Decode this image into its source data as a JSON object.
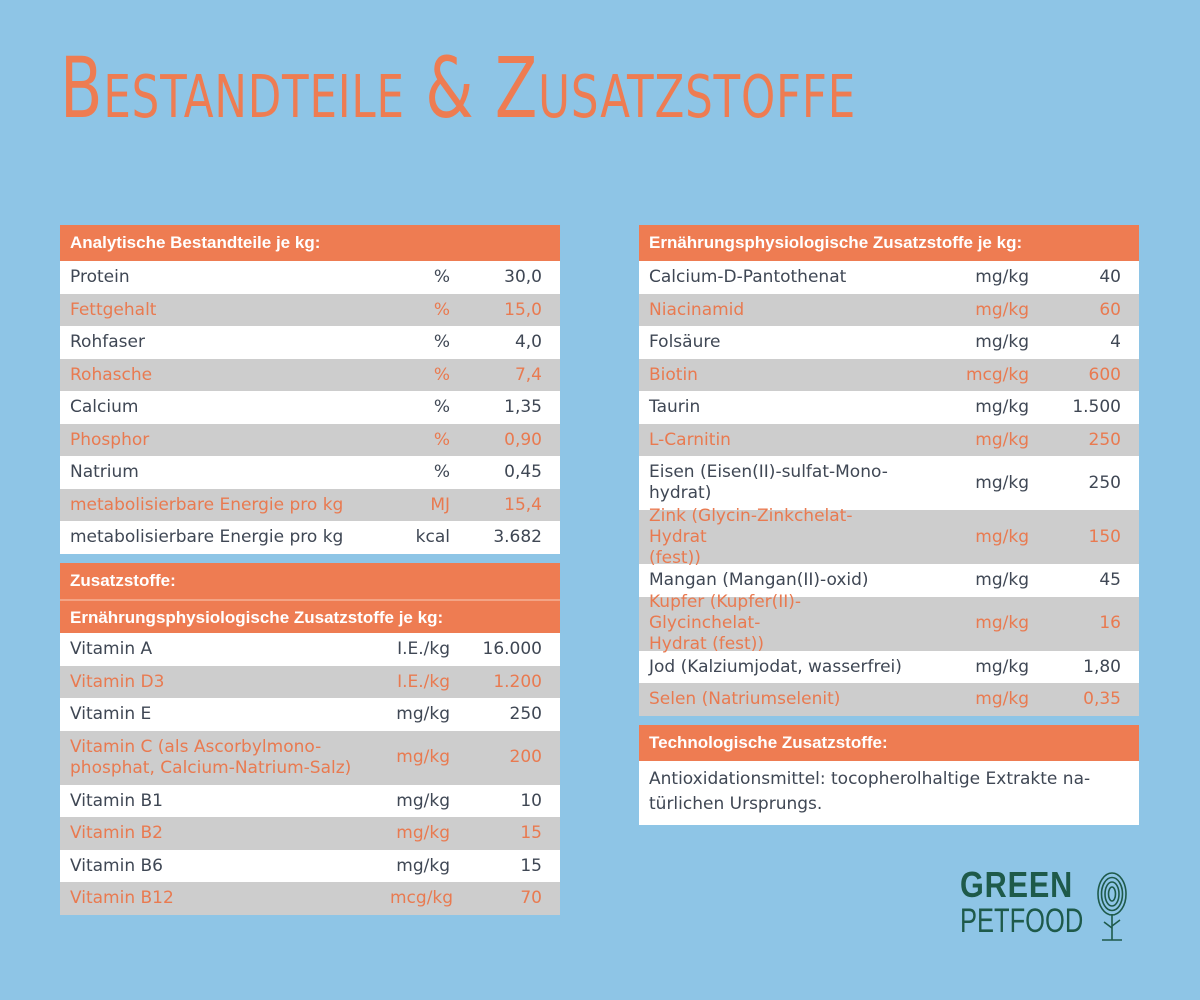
{
  "title": "Bestandteile & Zusatzstoffe",
  "left": {
    "analytic_header": "Analytische Bestandteile je kg:",
    "analytic_rows": [
      {
        "name": "Protein",
        "unit": "%",
        "value": "30,0"
      },
      {
        "name": "Fettgehalt",
        "unit": "%",
        "value": "15,0"
      },
      {
        "name": "Rohfaser",
        "unit": "%",
        "value": "4,0"
      },
      {
        "name": "Rohasche",
        "unit": "%",
        "value": "7,4"
      },
      {
        "name": "Calcium",
        "unit": "%",
        "value": "1,35"
      },
      {
        "name": "Phosphor",
        "unit": "%",
        "value": "0,90"
      },
      {
        "name": "Natrium",
        "unit": "%",
        "value": "0,45"
      },
      {
        "name": "metabolisierbare Energie pro kg",
        "unit": "MJ",
        "value": "15,4"
      },
      {
        "name": "metabolisierbare Energie pro kg",
        "unit": "kcal",
        "value": "3.682"
      }
    ],
    "additives_header": "Zusatzstoffe:",
    "nutrition_header": "Ernährungsphysiologische Zusatzstoffe je kg:",
    "vitamin_rows": [
      {
        "name": "Vitamin A",
        "unit": "I.E./kg",
        "value": "16.000"
      },
      {
        "name": "Vitamin D3",
        "unit": "I.E./kg",
        "value": "1.200"
      },
      {
        "name": "Vitamin E",
        "unit": "mg/kg",
        "value": "250"
      },
      {
        "name": "Vitamin C (als Ascorbylmono-\nphosphat, Calcium-Natrium-Salz)",
        "unit": "mg/kg",
        "value": "200"
      },
      {
        "name": "Vitamin B1",
        "unit": "mg/kg",
        "value": "10"
      },
      {
        "name": "Vitamin B2",
        "unit": "mg/kg",
        "value": "15"
      },
      {
        "name": "Vitamin B6",
        "unit": "mg/kg",
        "value": "15"
      },
      {
        "name": "Vitamin B12",
        "unit": "mcg/kg",
        "value": "70"
      }
    ]
  },
  "right": {
    "nutrition_header": "Ernährungsphysiologische Zusatzstoffe je kg:",
    "rows": [
      {
        "name": "Calcium-D-Pantothenat",
        "unit": "mg/kg",
        "value": "40"
      },
      {
        "name": "Niacinamid",
        "unit": "mg/kg",
        "value": "60"
      },
      {
        "name": "Folsäure",
        "unit": "mg/kg",
        "value": "4"
      },
      {
        "name": "Biotin",
        "unit": "mcg/kg",
        "value": "600"
      },
      {
        "name": "Taurin",
        "unit": "mg/kg",
        "value": "1.500"
      },
      {
        "name": "L-Carnitin",
        "unit": "mg/kg",
        "value": "250"
      },
      {
        "name": "Eisen (Eisen(II)-sulfat-Mono-\nhydrat)",
        "unit": "mg/kg",
        "value": "250"
      },
      {
        "name": "Zink (Glycin-Zinkchelat-Hydrat\n(fest))",
        "unit": "mg/kg",
        "value": "150"
      },
      {
        "name": "Mangan (Mangan(II)-oxid)",
        "unit": "mg/kg",
        "value": "45"
      },
      {
        "name": "Kupfer (Kupfer(II)-Glycinchelat-\nHydrat (fest))",
        "unit": "mg/kg",
        "value": "16"
      },
      {
        "name": "Jod (Kalziumjodat, wasserfrei)",
        "unit": "mg/kg",
        "value": "1,80"
      },
      {
        "name": "Selen (Natriumselenit)",
        "unit": "mg/kg",
        "value": "0,35"
      }
    ],
    "tech_header": "Technologische Zusatzstoffe:",
    "tech_text_line1": "Antioxidationsmittel: tocopherolhaltige Extrakte na-",
    "tech_text_line2": "türlichen Ursprungs."
  },
  "logo": {
    "line1": "GREEN",
    "line2": "PETFOOD",
    "color": "#1e5a4a"
  },
  "colors": {
    "background": "#8ec5e6",
    "accent": "#ee7c52",
    "row_alt": "#cdcdcd",
    "row_text": "#3f4754"
  }
}
